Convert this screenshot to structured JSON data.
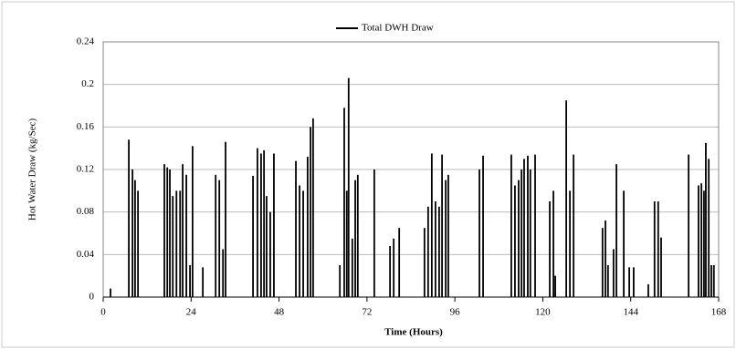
{
  "chart_data": {
    "type": "bar",
    "legend_label": "Total DWH Draw",
    "xlabel": "Time (Hours)",
    "ylabel": "Hot Water Draw (kg/Sec)",
    "color": "#000000",
    "grid": true,
    "legend": "top",
    "xlim": [
      0,
      168
    ],
    "xticks": [
      0,
      24,
      48,
      72,
      96,
      120,
      144,
      168
    ],
    "ylim": [
      0,
      0.24
    ],
    "yticks": [
      0,
      0.04,
      0.08,
      0.12,
      0.16,
      0.2,
      0.24
    ],
    "x": [
      2,
      7,
      8,
      8.7,
      9.5,
      16.7,
      17.5,
      18.2,
      19,
      20,
      21,
      21.7,
      22.7,
      23.7,
      24.4,
      27.2,
      30.7,
      31.7,
      32.7,
      33.4,
      40.9,
      42.1,
      43.1,
      43.9,
      44.6,
      45.6,
      46.6,
      52.6,
      53.6,
      54.6,
      55.8,
      56.6,
      57.3,
      64.6,
      65.8,
      66.5,
      67,
      68,
      68.8,
      69.5,
      74,
      78.3,
      79.3,
      80.8,
      87.7,
      88.7,
      89.7,
      90.7,
      91.7,
      92.5,
      93.5,
      94.2,
      102.7,
      103.7,
      111.4,
      112.4,
      113.4,
      114.2,
      114.9,
      115.9,
      116.6,
      117.9,
      121.9,
      122.9,
      123.4,
      126.4,
      127.4,
      128.4,
      136.3,
      137.1,
      137.8,
      139.3,
      140.1,
      142.1,
      143.6,
      144.8,
      148.8,
      150.5,
      151.5,
      152.3,
      159.8,
      162.5,
      163.3,
      164,
      164.5,
      165.3,
      166,
      166.7
    ],
    "values": [
      0.008,
      0.148,
      0.12,
      0.11,
      0.1,
      0.125,
      0.122,
      0.12,
      0.095,
      0.1,
      0.1,
      0.125,
      0.115,
      0.03,
      0.142,
      0.028,
      0.115,
      0.11,
      0.045,
      0.146,
      0.114,
      0.14,
      0.135,
      0.138,
      0.095,
      0.08,
      0.135,
      0.128,
      0.105,
      0.1,
      0.132,
      0.16,
      0.168,
      0.03,
      0.178,
      0.1,
      0.206,
      0.055,
      0.11,
      0.115,
      0.12,
      0.048,
      0.055,
      0.065,
      0.065,
      0.085,
      0.135,
      0.09,
      0.085,
      0.134,
      0.11,
      0.115,
      0.12,
      0.133,
      0.134,
      0.105,
      0.11,
      0.12,
      0.13,
      0.133,
      0.12,
      0.134,
      0.09,
      0.1,
      0.02,
      0.185,
      0.1,
      0.134,
      0.065,
      0.072,
      0.03,
      0.045,
      0.125,
      0.1,
      0.028,
      0.028,
      0.012,
      0.09,
      0.09,
      0.056,
      0.134,
      0.105,
      0.107,
      0.1,
      0.145,
      0.13,
      0.03,
      0.03
    ]
  }
}
